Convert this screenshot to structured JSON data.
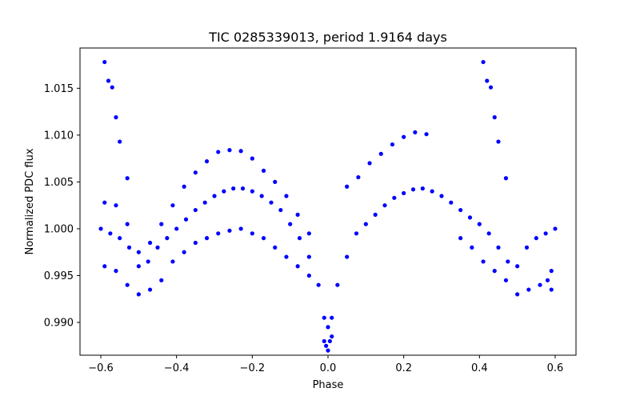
{
  "chart_data": {
    "type": "scatter",
    "title": "TIC 0285339013, period 1.9164 days",
    "xlabel": "Phase",
    "ylabel": "Normalized PDC flux",
    "xlim": [
      -0.655,
      0.655
    ],
    "ylim": [
      0.9865,
      1.0193
    ],
    "xticks": [
      {
        "value": -0.6,
        "label": "−0.6"
      },
      {
        "value": -0.4,
        "label": "−0.4"
      },
      {
        "value": -0.2,
        "label": "−0.2"
      },
      {
        "value": 0.0,
        "label": "0.0"
      },
      {
        "value": 0.2,
        "label": "0.2"
      },
      {
        "value": 0.4,
        "label": "0.4"
      },
      {
        "value": 0.6,
        "label": "0.6"
      }
    ],
    "yticks": [
      {
        "value": 0.99,
        "label": "0.990"
      },
      {
        "value": 0.995,
        "label": "0.995"
      },
      {
        "value": 1.0,
        "label": "1.000"
      },
      {
        "value": 1.005,
        "label": "1.005"
      },
      {
        "value": 1.01,
        "label": "1.010"
      },
      {
        "value": 1.015,
        "label": "1.015"
      }
    ],
    "grid": false,
    "marker_color": "#0000ff",
    "series": [
      {
        "points": [
          [
            -0.6,
            1.0
          ],
          [
            -0.575,
            0.9995
          ],
          [
            -0.55,
            0.999
          ],
          [
            -0.525,
            0.998
          ],
          [
            -0.5,
            0.996
          ],
          [
            -0.475,
            0.9965
          ],
          [
            -0.45,
            0.998
          ],
          [
            -0.425,
            0.999
          ],
          [
            -0.4,
            1.0
          ],
          [
            -0.375,
            1.001
          ],
          [
            -0.35,
            1.002
          ],
          [
            -0.325,
            1.0028
          ],
          [
            -0.3,
            1.0035
          ],
          [
            -0.275,
            1.004
          ],
          [
            -0.25,
            1.0043
          ],
          [
            -0.225,
            1.0043
          ],
          [
            -0.2,
            1.004
          ],
          [
            -0.175,
            1.0035
          ],
          [
            -0.15,
            1.0028
          ],
          [
            -0.125,
            1.002
          ],
          [
            -0.1,
            1.0005
          ],
          [
            -0.075,
            0.999
          ],
          [
            -0.05,
            0.997
          ],
          [
            -0.025,
            0.994
          ],
          [
            -0.01,
            0.9905
          ],
          [
            0.0,
            0.9895
          ],
          [
            0.01,
            0.9905
          ],
          [
            0.025,
            0.994
          ],
          [
            0.05,
            0.997
          ],
          [
            0.075,
            0.9995
          ],
          [
            0.1,
            1.0005
          ],
          [
            0.125,
            1.0015
          ],
          [
            0.15,
            1.0025
          ],
          [
            0.175,
            1.0033
          ],
          [
            0.2,
            1.0038
          ],
          [
            0.225,
            1.0042
          ],
          [
            0.25,
            1.0043
          ],
          [
            0.275,
            1.004
          ],
          [
            0.3,
            1.0035
          ],
          [
            0.325,
            1.0028
          ],
          [
            0.35,
            1.002
          ],
          [
            0.375,
            1.0012
          ],
          [
            0.4,
            1.0005
          ],
          [
            0.425,
            0.9995
          ],
          [
            0.45,
            0.998
          ],
          [
            0.475,
            0.9965
          ],
          [
            0.5,
            0.996
          ],
          [
            0.525,
            0.998
          ],
          [
            0.55,
            0.999
          ],
          [
            0.575,
            0.9995
          ],
          [
            0.6,
            1.0
          ]
        ]
      },
      {
        "points": [
          [
            -0.59,
            1.0028
          ],
          [
            -0.56,
            1.0025
          ],
          [
            -0.53,
            1.0005
          ],
          [
            -0.5,
            0.9975
          ],
          [
            -0.47,
            0.9985
          ],
          [
            -0.44,
            1.0005
          ],
          [
            -0.41,
            1.0025
          ],
          [
            -0.38,
            1.0045
          ],
          [
            -0.35,
            1.006
          ],
          [
            -0.32,
            1.0072
          ],
          [
            -0.29,
            1.0082
          ],
          [
            -0.26,
            1.0084
          ],
          [
            -0.23,
            1.0083
          ],
          [
            -0.2,
            1.0075
          ],
          [
            -0.17,
            1.0062
          ],
          [
            -0.14,
            1.005
          ],
          [
            -0.11,
            1.0035
          ],
          [
            -0.08,
            1.0015
          ],
          [
            -0.05,
            0.9995
          ],
          [
            0.05,
            1.0045
          ],
          [
            0.08,
            1.0055
          ],
          [
            0.11,
            1.007
          ],
          [
            0.14,
            1.008
          ],
          [
            0.17,
            1.009
          ],
          [
            0.2,
            1.0098
          ],
          [
            0.23,
            1.0103
          ],
          [
            0.26,
            1.0101
          ]
        ]
      },
      {
        "points": [
          [
            -0.59,
            0.996
          ],
          [
            -0.56,
            0.9955
          ],
          [
            -0.53,
            0.994
          ],
          [
            -0.5,
            0.993
          ],
          [
            -0.47,
            0.9935
          ],
          [
            -0.44,
            0.9945
          ],
          [
            -0.41,
            0.9965
          ],
          [
            -0.38,
            0.9975
          ],
          [
            -0.35,
            0.9985
          ],
          [
            -0.32,
            0.999
          ],
          [
            -0.29,
            0.9995
          ],
          [
            -0.26,
            0.9998
          ],
          [
            -0.23,
            1.0
          ],
          [
            -0.2,
            0.9995
          ],
          [
            -0.17,
            0.999
          ],
          [
            -0.14,
            0.998
          ],
          [
            -0.11,
            0.997
          ],
          [
            -0.08,
            0.996
          ],
          [
            -0.05,
            0.995
          ],
          [
            0.35,
            0.999
          ],
          [
            0.38,
            0.998
          ],
          [
            0.41,
            0.9965
          ],
          [
            0.44,
            0.9955
          ],
          [
            0.47,
            0.9945
          ],
          [
            0.5,
            0.993
          ],
          [
            0.53,
            0.9935
          ],
          [
            0.56,
            0.994
          ],
          [
            0.59,
            0.9955
          ]
        ]
      },
      {
        "points": [
          [
            -0.59,
            1.0178
          ],
          [
            -0.58,
            1.0158
          ],
          [
            -0.57,
            1.0151
          ],
          [
            -0.56,
            1.0119
          ],
          [
            -0.55,
            1.0093
          ],
          [
            -0.53,
            1.0054
          ],
          [
            0.41,
            1.0178
          ],
          [
            0.42,
            1.0158
          ],
          [
            0.43,
            1.0151
          ],
          [
            0.44,
            1.0119
          ],
          [
            0.45,
            1.0093
          ],
          [
            0.47,
            1.0054
          ],
          [
            0.0,
            0.987
          ],
          [
            -0.01,
            0.988
          ],
          [
            0.01,
            0.9885
          ],
          [
            -0.005,
            0.9875
          ],
          [
            0.005,
            0.988
          ],
          [
            0.59,
            0.9935
          ],
          [
            0.58,
            0.9945
          ]
        ]
      }
    ]
  }
}
